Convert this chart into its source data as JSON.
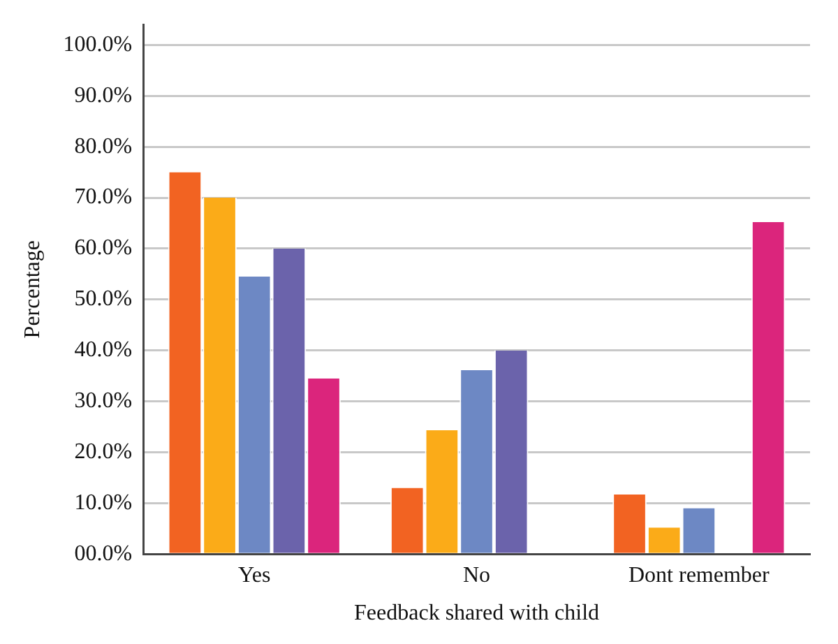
{
  "chart_data": {
    "type": "bar",
    "xlabel": "Feedback shared with child",
    "ylabel": "Percentage",
    "categories": [
      "Yes",
      "No",
      "Dont remember"
    ],
    "series": [
      {
        "color": "#f26322",
        "values": [
          75,
          13,
          11.7
        ]
      },
      {
        "color": "#fbab18",
        "values": [
          70,
          24.3,
          5.2
        ]
      },
      {
        "color": "#6d88c4",
        "values": [
          54.5,
          36.1,
          9
        ]
      },
      {
        "color": "#6b63ab",
        "values": [
          60,
          40,
          null
        ]
      },
      {
        "color": "#db257c",
        "values": [
          34.5,
          null,
          65.2
        ]
      }
    ],
    "ylim": [
      0,
      104
    ],
    "yticks": [
      {
        "value": 0,
        "label": "00.0%"
      },
      {
        "value": 10,
        "label": "10.0%"
      },
      {
        "value": 20,
        "label": "20.0%"
      },
      {
        "value": 30,
        "label": "30.0%"
      },
      {
        "value": 40,
        "label": "40.0%"
      },
      {
        "value": 50,
        "label": "50.0%"
      },
      {
        "value": 60,
        "label": "60.0%"
      },
      {
        "value": 70,
        "label": "70.0%"
      },
      {
        "value": 80,
        "label": "80.0%"
      },
      {
        "value": 90,
        "label": "90.0%"
      },
      {
        "value": 100,
        "label": "100.0%"
      }
    ],
    "grid": "y",
    "legend": false
  }
}
